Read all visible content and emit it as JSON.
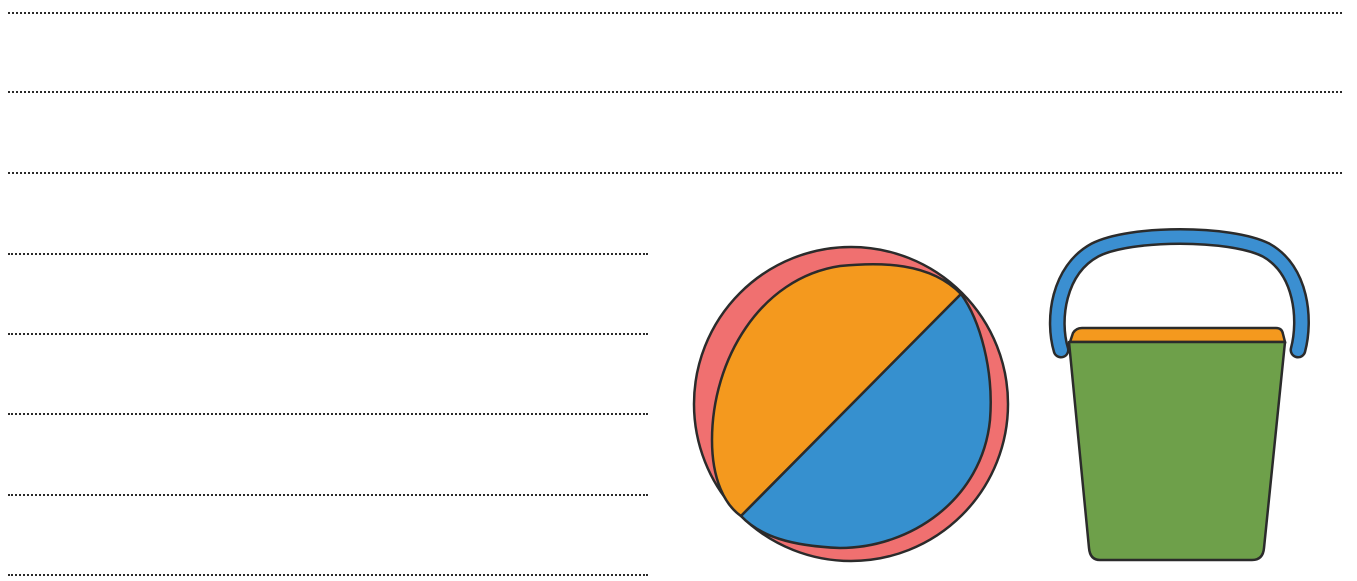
{
  "worksheet": {
    "writing_lines": {
      "full_width_count": 3,
      "short_count": 5
    },
    "illustrations": [
      {
        "name": "beach ball",
        "icon": "beach-ball-icon",
        "colors": {
          "base": "#f07070",
          "top_stripe": "#f4991e",
          "bottom_stripe": "#3690cf",
          "outline": "#2b2b2b"
        }
      },
      {
        "name": "bucket",
        "icon": "bucket-icon",
        "colors": {
          "handle": "#3b8fd1",
          "rim": "#f4991e",
          "body": "#6ea04a",
          "outline": "#2b2b2b"
        }
      }
    ]
  }
}
